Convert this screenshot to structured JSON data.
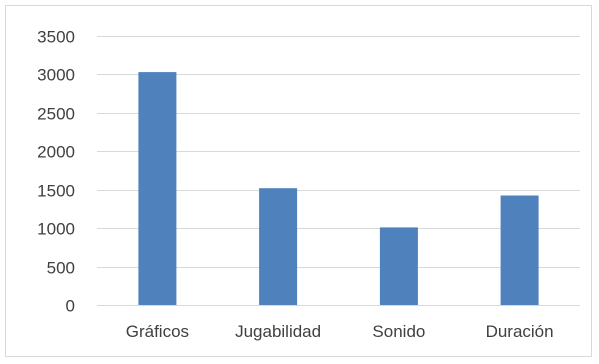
{
  "chart_data": {
    "type": "bar",
    "title": "",
    "xlabel": "",
    "ylabel": "",
    "categories": [
      "Gráficos",
      "Jugabilidad",
      "Sonido",
      "Duración"
    ],
    "values": [
      3030,
      1520,
      1010,
      1425
    ],
    "ylim": [
      0,
      3500
    ],
    "yticks": [
      0,
      500,
      1000,
      1500,
      2000,
      2500,
      3000,
      3500
    ],
    "ytick_labels": [
      "0",
      "500",
      "1000",
      "1500",
      "2000",
      "2500",
      "3000",
      "3500"
    ],
    "grid": true,
    "legend": "none",
    "bar_color": "#4f81bd",
    "grid_color": "#d9d9d9"
  }
}
